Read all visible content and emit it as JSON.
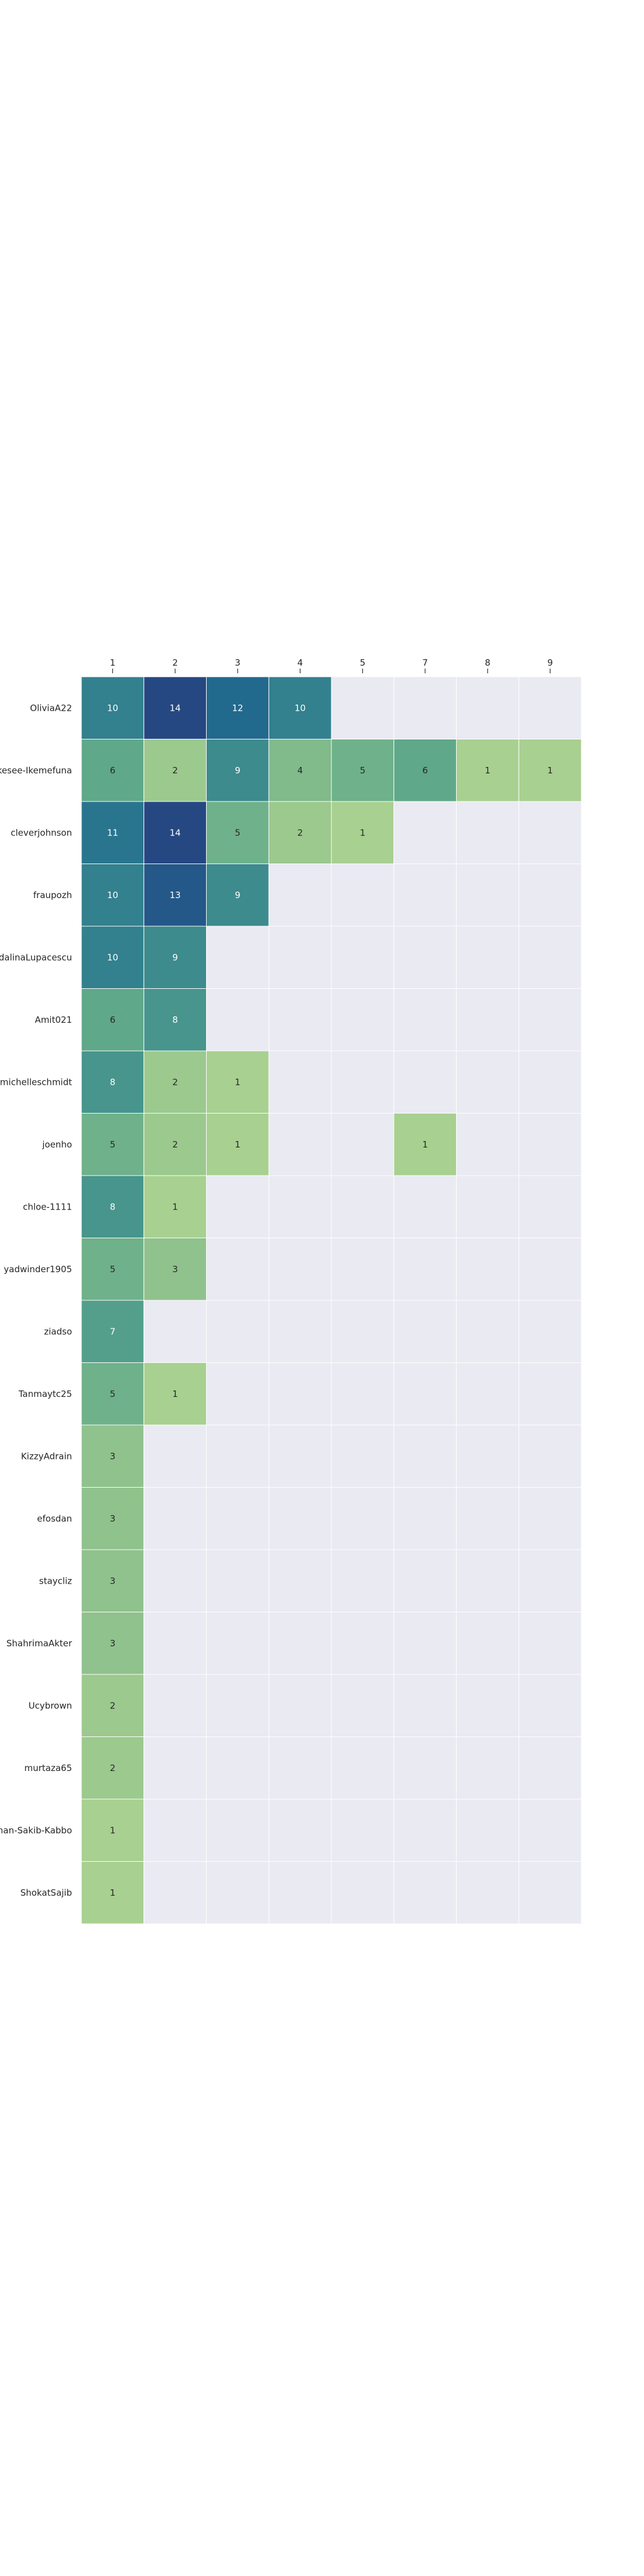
{
  "chart_data": {
    "type": "heatmap",
    "x_categories": [
      "1",
      "2",
      "3",
      "4",
      "5",
      "7",
      "8",
      "9"
    ],
    "y_categories": [
      "OliviaA22",
      "Ikesee-Ikemefuna",
      "cleverjohnson",
      "fraupozh",
      "adalinaLupacescu",
      "Amit021",
      "michelleschmidt",
      "joenho",
      "chloe-1111",
      "yadwinder1905",
      "ziadso",
      "Tanmaytc25",
      "KizzyAdrain",
      "efosdan",
      "staycliz",
      "ShahrimaAkter",
      "Ucybrown",
      "murtaza65",
      "man-Sakib-Kabbo",
      "ShokatSajib"
    ],
    "values": [
      [
        10,
        14,
        12,
        10,
        null,
        null,
        null,
        null
      ],
      [
        6,
        2,
        9,
        4,
        5,
        6,
        1,
        1
      ],
      [
        11,
        14,
        5,
        2,
        1,
        null,
        null,
        null
      ],
      [
        10,
        13,
        9,
        null,
        null,
        null,
        null,
        null
      ],
      [
        10,
        9,
        null,
        null,
        null,
        null,
        null,
        null
      ],
      [
        6,
        8,
        null,
        null,
        null,
        null,
        null,
        null
      ],
      [
        8,
        2,
        1,
        null,
        null,
        null,
        null,
        null
      ],
      [
        5,
        2,
        1,
        null,
        null,
        1,
        null,
        null
      ],
      [
        8,
        1,
        null,
        null,
        null,
        null,
        null,
        null
      ],
      [
        5,
        3,
        null,
        null,
        null,
        null,
        null,
        null
      ],
      [
        7,
        null,
        null,
        null,
        null,
        null,
        null,
        null
      ],
      [
        5,
        1,
        null,
        null,
        null,
        null,
        null,
        null
      ],
      [
        3,
        null,
        null,
        null,
        null,
        null,
        null,
        null
      ],
      [
        3,
        null,
        null,
        null,
        null,
        null,
        null,
        null
      ],
      [
        3,
        null,
        null,
        null,
        null,
        null,
        null,
        null
      ],
      [
        3,
        null,
        null,
        null,
        null,
        null,
        null,
        null
      ],
      [
        2,
        null,
        null,
        null,
        null,
        null,
        null,
        null
      ],
      [
        2,
        null,
        null,
        null,
        null,
        null,
        null,
        null
      ],
      [
        1,
        null,
        null,
        null,
        null,
        null,
        null,
        null
      ],
      [
        1,
        null,
        null,
        null,
        null,
        null,
        null,
        null
      ]
    ],
    "x_axis_position": "top",
    "colormap": "crest",
    "empty_cell_color": "#eaeaf2",
    "color_range": [
      1,
      14
    ]
  }
}
